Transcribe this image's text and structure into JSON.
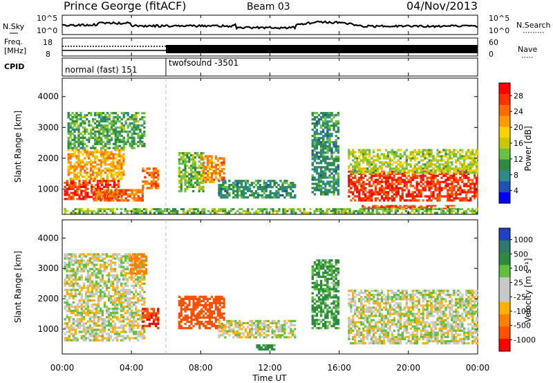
{
  "header": {
    "station": "Prince George (fitACF)",
    "beam": "Beam 03",
    "date": "04/Nov/2013"
  },
  "noise_panel": {
    "left_label": "N.Sky",
    "right_label": "N.Search",
    "left_ticks": [
      "10^5",
      "10^0"
    ],
    "right_ticks": [
      "10^5",
      "10^0"
    ]
  },
  "freq_panel": {
    "left_label_1": "Freq.",
    "left_label_2": "[MHz]",
    "left_ticks": [
      "18",
      "8"
    ],
    "right_label": "Nave",
    "right_ticks": [
      "60",
      "0"
    ]
  },
  "cpid_panel": {
    "label": "CPID",
    "modes": [
      {
        "name": "normal (fast) 151",
        "start_hour": 0,
        "end_hour": 6
      },
      {
        "name": "twofsound -3501",
        "start_hour": 6,
        "end_hour": 24
      }
    ]
  },
  "power_colorbar": {
    "label": "Power [dB]",
    "ticks": [
      "28",
      "24",
      "20",
      "16",
      "12",
      "8",
      "4"
    ],
    "colors": [
      "#ff0000",
      "#ff3000",
      "#ff6a00",
      "#ff9a00",
      "#ffd000",
      "#c8c800",
      "#6cc040",
      "#2e8a40",
      "#2e8a8a",
      "#2050b0",
      "#0000ff"
    ]
  },
  "velocity_colorbar": {
    "label": "Velocity [m s⁻¹]",
    "ticks": [
      "1000",
      "500",
      "100",
      "25",
      "-25",
      "-100",
      "-500",
      "-1000"
    ],
    "colors": [
      "#2040c0",
      "#2e7a6a",
      "#2e8a40",
      "#60c040",
      "#c8c8c8",
      "#c8c8c8",
      "#ffb000",
      "#ff8000",
      "#ff5000",
      "#ff0000"
    ]
  },
  "chart_data": {
    "type": "heatmap",
    "xlabel": "Time UT",
    "ylabel": "Slant Range [km]",
    "x_ticks": [
      "00:00",
      "04:00",
      "08:00",
      "12:00",
      "16:00",
      "20:00",
      "00:00"
    ],
    "y_ticks": [
      "1000",
      "2000",
      "3000",
      "4000"
    ],
    "xlim_hours": [
      0,
      24
    ],
    "ylim_km": [
      180,
      4600
    ],
    "mode_change_hour": 6,
    "power_regions": [
      {
        "t0": 0.1,
        "t1": 3.3,
        "r0": 650,
        "r1": 1300,
        "power_db": 27
      },
      {
        "t0": 0.3,
        "t1": 3.6,
        "r0": 1300,
        "r1": 2300,
        "power_db": 20
      },
      {
        "t0": 0.3,
        "t1": 4.8,
        "r0": 2300,
        "r1": 3500,
        "power_db": 10
      },
      {
        "t0": 1.8,
        "t1": 4.7,
        "r0": 600,
        "r1": 1000,
        "power_db": 24
      },
      {
        "t0": 4.6,
        "t1": 5.6,
        "r0": 1000,
        "r1": 1700,
        "power_db": 24
      },
      {
        "t0": 6.7,
        "t1": 8.2,
        "r0": 900,
        "r1": 2200,
        "power_db": 12
      },
      {
        "t0": 8.0,
        "t1": 9.4,
        "r0": 1200,
        "r1": 2100,
        "power_db": 22
      },
      {
        "t0": 9.0,
        "t1": 13.5,
        "r0": 700,
        "r1": 1300,
        "power_db": 8
      },
      {
        "t0": 14.4,
        "t1": 16.0,
        "r0": 800,
        "r1": 3500,
        "power_db": 8
      },
      {
        "t0": 16.5,
        "t1": 24.0,
        "r0": 600,
        "r1": 1600,
        "power_db": 27
      },
      {
        "t0": 16.5,
        "t1": 24.0,
        "r0": 1500,
        "r1": 2300,
        "power_db": 14
      },
      {
        "t0": 17.3,
        "t1": 22.7,
        "r0": 350,
        "r1": 480,
        "power_db": 26
      },
      {
        "t0": 0.1,
        "t1": 24.0,
        "r0": 200,
        "r1": 380,
        "power_db": 12
      }
    ],
    "velocity_regions": [
      {
        "t0": 0.1,
        "t1": 4.8,
        "r0": 600,
        "r1": 3500,
        "velocity": 0
      },
      {
        "t0": 3.9,
        "t1": 4.9,
        "r0": 2800,
        "r1": 3500,
        "velocity": -300
      },
      {
        "t0": 4.6,
        "t1": 5.6,
        "r0": 1000,
        "r1": 1700,
        "velocity": -700
      },
      {
        "t0": 6.7,
        "t1": 9.4,
        "r0": 1000,
        "r1": 2100,
        "velocity": -500
      },
      {
        "t0": 9.0,
        "t1": 13.5,
        "r0": 700,
        "r1": 1300,
        "velocity": 0
      },
      {
        "t0": 14.4,
        "t1": 16.0,
        "r0": 1000,
        "r1": 3300,
        "velocity": 80
      },
      {
        "t0": 16.5,
        "t1": 24.0,
        "r0": 500,
        "r1": 2300,
        "velocity": 0
      },
      {
        "t0": 11.2,
        "t1": 12.3,
        "r0": 300,
        "r1": 500,
        "velocity": 100
      }
    ]
  }
}
